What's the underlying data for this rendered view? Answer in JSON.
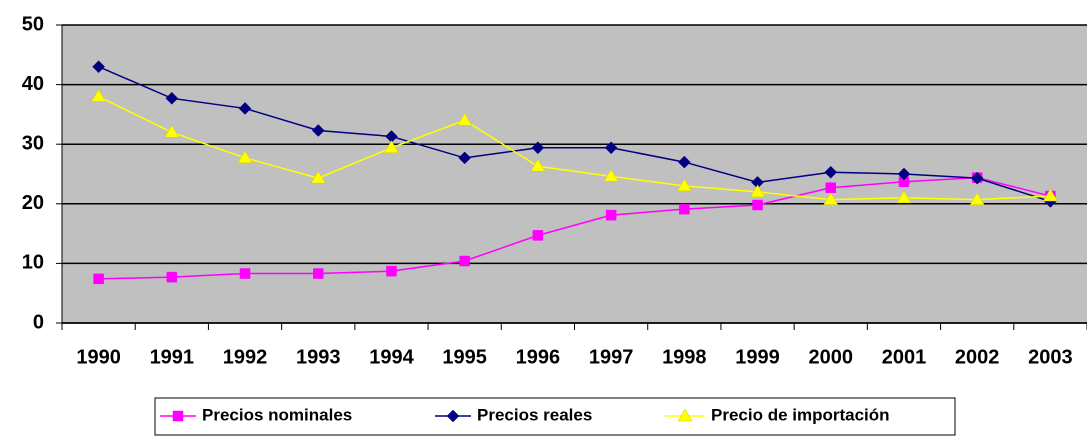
{
  "chart_data": {
    "type": "line",
    "categories": [
      "1990",
      "1991",
      "1992",
      "1993",
      "1994",
      "1995",
      "1996",
      "1997",
      "1998",
      "1999",
      "2000",
      "2001",
      "2002",
      "2003"
    ],
    "series": [
      {
        "name": "Precios nominales",
        "color": "#ff00ff",
        "marker": "square",
        "values": [
          7.4,
          7.7,
          8.3,
          8.3,
          8.7,
          10.4,
          14.7,
          18.1,
          19.1,
          19.8,
          22.7,
          23.7,
          24.4,
          21.3
        ]
      },
      {
        "name": "Precios reales",
        "color": "#000080",
        "marker": "diamond",
        "values": [
          43,
          37.7,
          36,
          32.3,
          31.3,
          27.7,
          29.4,
          29.4,
          27,
          23.6,
          25.3,
          25,
          24.3,
          20.4
        ]
      },
      {
        "name": "Precio de importación",
        "color": "#ffff00",
        "marker": "triangle",
        "values": [
          38,
          32,
          27.7,
          24.3,
          29.4,
          34,
          26.3,
          24.6,
          23,
          22,
          20.7,
          21,
          20.7,
          21.3
        ]
      }
    ],
    "ylim": [
      0,
      50
    ],
    "yticks": [
      0,
      10,
      20,
      30,
      40,
      50
    ],
    "grid": true,
    "legend": "bottom"
  }
}
